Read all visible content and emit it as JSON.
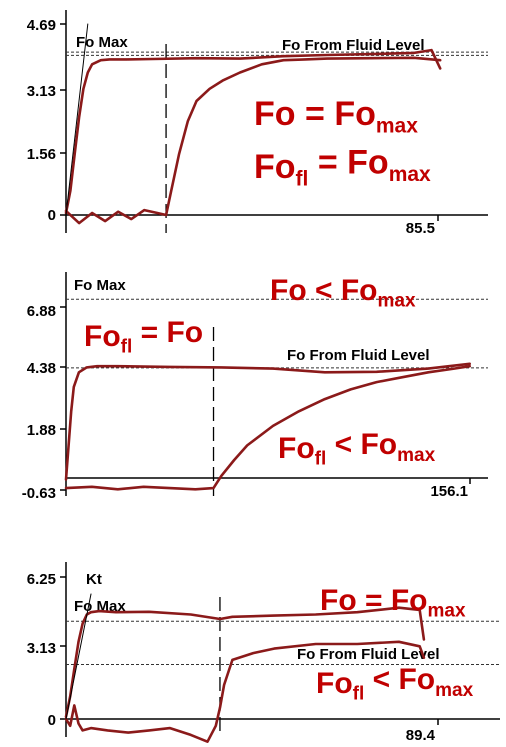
{
  "colors": {
    "trace": "#8b1a1a",
    "equation": "#c00000",
    "axis": "#000000",
    "reference": "#333333"
  },
  "chart_data": [
    {
      "type": "line",
      "y_ticks": [
        "4.69",
        "3.13",
        "1.56",
        "0"
      ],
      "x_end_label": "85.5",
      "ylim": [
        0,
        4.69
      ],
      "xlim": [
        0,
        85.5
      ],
      "reference_lines": [
        {
          "label": "Fo Max",
          "y": 4.0
        },
        {
          "label": "Fo From Fluid Level",
          "y": 3.92
        }
      ],
      "dashed_vertical_x": 23,
      "equations": [
        {
          "lhs": "Fo",
          "lhs_sub": "",
          "op": "=",
          "rhs": "Fo",
          "rhs_sub": "max"
        },
        {
          "lhs": "Fo",
          "lhs_sub": "fl",
          "op": "=",
          "rhs": "Fo",
          "rhs_sub": "max"
        }
      ],
      "series": [
        {
          "x": [
            0,
            1,
            2,
            3,
            4,
            5,
            6,
            8,
            10,
            14,
            20,
            30,
            40,
            50,
            60,
            70,
            80,
            84,
            86
          ],
          "y": [
            0.05,
            0.6,
            1.5,
            2.4,
            3.1,
            3.5,
            3.7,
            3.8,
            3.82,
            3.82,
            3.83,
            3.85,
            3.84,
            3.9,
            3.93,
            3.95,
            3.98,
            4.05,
            3.6
          ]
        },
        {
          "x": [
            0,
            3,
            6,
            9,
            12,
            15,
            18,
            21,
            23,
            24,
            26,
            28,
            30,
            33,
            36,
            40,
            45,
            50,
            55,
            60,
            70,
            80,
            86
          ],
          "y": [
            0.1,
            -0.2,
            0.05,
            -0.15,
            0.08,
            -0.1,
            0.12,
            0.05,
            0.0,
            0.5,
            1.5,
            2.3,
            2.8,
            3.1,
            3.3,
            3.5,
            3.7,
            3.8,
            3.82,
            3.84,
            3.85,
            3.86,
            3.8
          ]
        },
        {
          "x": [
            0,
            5
          ],
          "y": [
            0,
            4.69
          ]
        }
      ]
    },
    {
      "type": "line",
      "y_ticks": [
        "6.88",
        "4.38",
        "1.88",
        "-0.63"
      ],
      "x_end_label": "156.1",
      "ylim": [
        -0.63,
        6.88
      ],
      "xlim": [
        0,
        156.1
      ],
      "reference_lines": [
        {
          "label": "Fo Max",
          "y": 7.2
        },
        {
          "label": "Fo From Fluid Level",
          "y": 4.38
        }
      ],
      "dashed_vertical_x": 57,
      "equations": [
        {
          "lhs": "Fo",
          "lhs_sub": "",
          "op": "<",
          "rhs": "Fo",
          "rhs_sub": "max"
        },
        {
          "lhs": "Fo",
          "lhs_sub": "fl",
          "op": "=",
          "rhs": "Fo",
          "rhs_sub": ""
        },
        {
          "lhs": "Fo",
          "lhs_sub": "fl",
          "op": "<",
          "rhs": "Fo",
          "rhs_sub": "max"
        }
      ],
      "series": [
        {
          "x": [
            0,
            1,
            2,
            3,
            5,
            8,
            12,
            20,
            40,
            60,
            80,
            100,
            120,
            140,
            156
          ],
          "y": [
            -0.2,
            1.2,
            2.6,
            3.6,
            4.2,
            4.4,
            4.45,
            4.45,
            4.42,
            4.4,
            4.35,
            4.2,
            4.22,
            4.35,
            4.55
          ]
        },
        {
          "x": [
            0,
            10,
            20,
            30,
            40,
            50,
            57,
            60,
            65,
            70,
            80,
            90,
            100,
            110,
            120,
            130,
            140,
            150,
            156
          ],
          "y": [
            -0.55,
            -0.5,
            -0.6,
            -0.5,
            -0.55,
            -0.6,
            -0.55,
            -0.05,
            0.6,
            1.2,
            2.0,
            2.6,
            3.1,
            3.5,
            3.8,
            4.0,
            4.2,
            4.35,
            4.45
          ]
        }
      ]
    },
    {
      "type": "line",
      "y_ticks": [
        "6.25",
        "3.13",
        "0"
      ],
      "x_end_label": "89.4",
      "ylim": [
        0,
        6.25
      ],
      "xlim": [
        0,
        89.4
      ],
      "reference_lines": [
        {
          "label": "Fo Max",
          "y": 4.3
        },
        {
          "label": "Fo From Fluid Level",
          "y": 2.4
        }
      ],
      "kt_label": "Kt",
      "dashed_vertical_x": 37,
      "equations": [
        {
          "lhs": "Fo",
          "lhs_sub": "",
          "op": "=",
          "rhs": "Fo",
          "rhs_sub": "max"
        },
        {
          "lhs": "Fo",
          "lhs_sub": "fl",
          "op": "<",
          "rhs": "Fo",
          "rhs_sub": "max"
        }
      ],
      "series": [
        {
          "x": [
            0,
            1,
            2,
            3,
            4,
            5,
            6,
            8,
            12,
            20,
            30,
            37,
            40,
            50,
            60,
            70,
            80,
            85,
            86
          ],
          "y": [
            0.1,
            1.0,
            2.2,
            3.4,
            4.2,
            4.6,
            4.7,
            4.75,
            4.7,
            4.72,
            4.6,
            4.4,
            4.5,
            4.55,
            4.6,
            4.7,
            4.9,
            4.8,
            3.5
          ]
        },
        {
          "x": [
            0,
            1,
            2,
            3,
            4,
            6,
            10,
            15,
            20,
            25,
            30,
            34,
            36,
            37,
            38,
            40,
            45,
            50,
            60,
            70,
            80,
            85,
            86
          ],
          "y": [
            0.0,
            -0.3,
            0.6,
            -0.2,
            -0.5,
            -0.4,
            -0.5,
            -0.6,
            -0.5,
            -0.4,
            -0.7,
            -1.0,
            -0.3,
            0.5,
            1.5,
            2.6,
            2.9,
            3.1,
            3.3,
            3.3,
            3.4,
            3.2,
            2.7
          ]
        },
        {
          "x": [
            0,
            6
          ],
          "y": [
            0,
            5.5
          ]
        }
      ]
    }
  ]
}
